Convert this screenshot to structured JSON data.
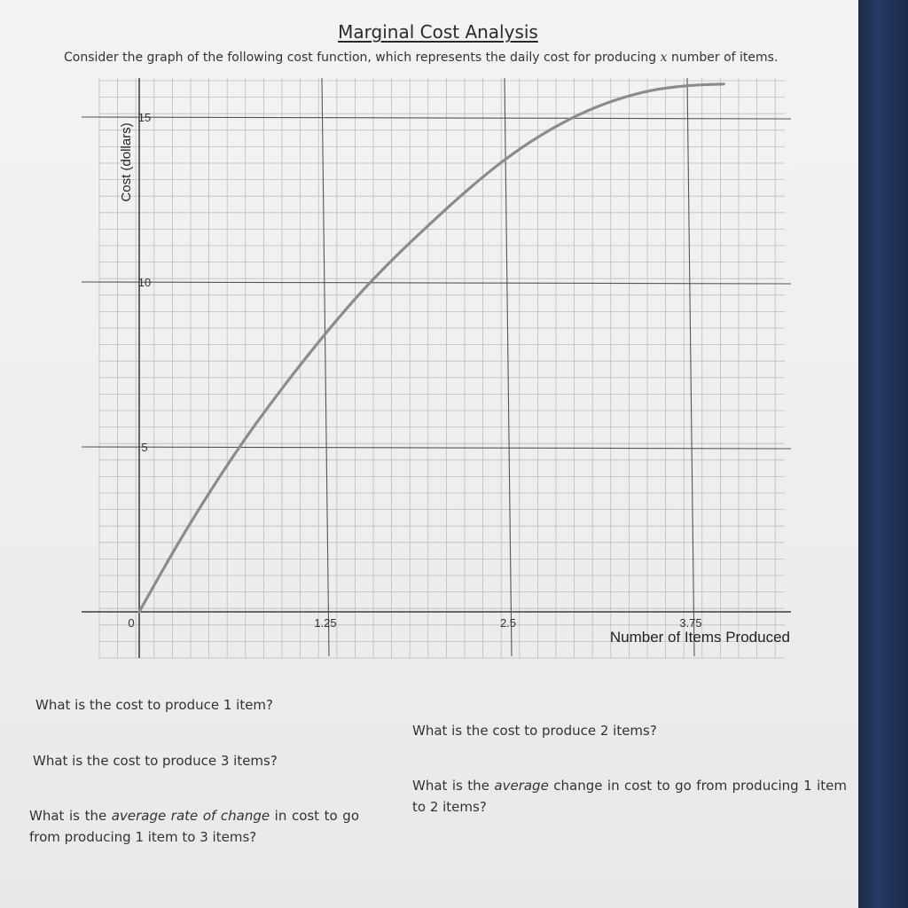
{
  "header": {
    "title": "Marginal Cost Analysis",
    "subtitle_before": "Consider the graph of the following cost function, which represents the daily cost for producing ",
    "subtitle_var": "x",
    "subtitle_after": " number of items."
  },
  "chart_data": {
    "type": "line",
    "title": "",
    "xlabel": "Number of Items Produced",
    "ylabel": "Cost (dollars)",
    "xlim": [
      0,
      3.75
    ],
    "ylim": [
      0,
      16
    ],
    "x_ticks": [
      "0",
      "1.25",
      "2.5",
      "3.75"
    ],
    "y_ticks": [
      "5",
      "10",
      "15"
    ],
    "grid": true,
    "series": [
      {
        "x": [
          0,
          0.25,
          0.5,
          0.75,
          1.0,
          1.25,
          1.5,
          1.75,
          2.0,
          2.25,
          2.5,
          2.75,
          3.0,
          3.25,
          3.5,
          3.75,
          4.0
        ],
        "y": [
          0,
          1.95,
          3.75,
          5.4,
          6.9,
          8.3,
          9.6,
          10.75,
          11.8,
          12.8,
          13.7,
          14.45,
          15.05,
          15.5,
          15.8,
          15.95,
          16.0
        ]
      }
    ]
  },
  "questions": {
    "q1": "What is the cost to produce 1 item?",
    "q2": "What is the cost to produce 2 items?",
    "q3": "What is the cost to produce 3 items?",
    "q4_before": "What is the ",
    "q4_em": "average",
    "q4_after": " change in cost to go from producing 1 item to 2 items?",
    "q5_before": "What is the ",
    "q5_em": "average rate of change",
    "q5_after": " in cost to go from producing 1 item to 3 items?"
  },
  "colors": {
    "paper": "#f0f0ee",
    "curve": "#8c8c8c",
    "grid_major": "#555555",
    "grid_minor": "#bdbdbd"
  }
}
